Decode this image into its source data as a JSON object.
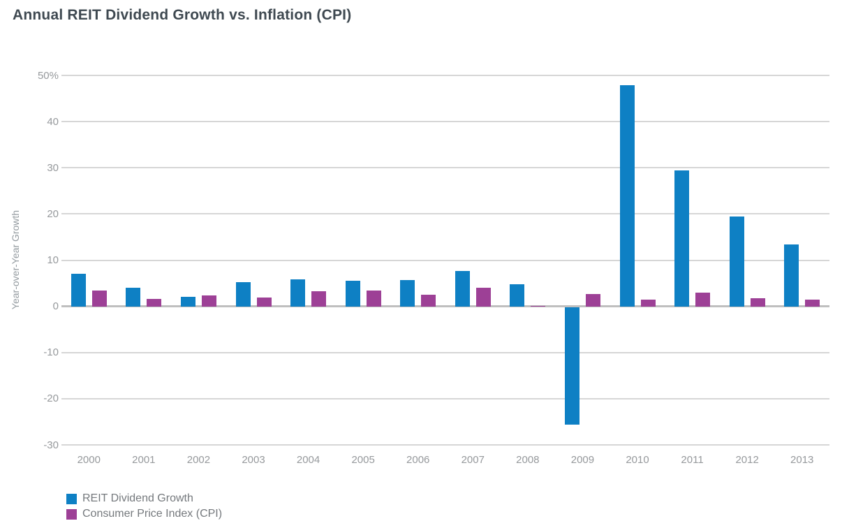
{
  "chart_data": {
    "type": "bar",
    "title": "Annual REIT Dividend Growth vs. Inflation (CPI)",
    "xlabel": "",
    "ylabel": "Year-over-Year Growth",
    "ylim": [
      -30,
      50
    ],
    "grid": "horizontal",
    "legend_position": "bottom-left",
    "background_color": "#ffffff",
    "y_ticks": [
      {
        "value": 50,
        "label": "50%"
      },
      {
        "value": 40,
        "label": "40"
      },
      {
        "value": 30,
        "label": "30"
      },
      {
        "value": 20,
        "label": "20"
      },
      {
        "value": 10,
        "label": "10"
      },
      {
        "value": 0,
        "label": "0"
      },
      {
        "value": -10,
        "label": "-10"
      },
      {
        "value": -20,
        "label": "-20"
      },
      {
        "value": -30,
        "label": "-30"
      }
    ],
    "categories": [
      "2000",
      "2001",
      "2002",
      "2003",
      "2004",
      "2005",
      "2006",
      "2007",
      "2008",
      "2009",
      "2010",
      "2011",
      "2012",
      "2013"
    ],
    "series": [
      {
        "name": "REIT Dividend Growth",
        "color": "#0e80c4",
        "values": [
          7.0,
          4.0,
          2.1,
          5.3,
          5.9,
          5.6,
          5.7,
          7.6,
          4.8,
          -25.4,
          47.9,
          29.4,
          19.4,
          13.4
        ]
      },
      {
        "name": "Consumer Price Index (CPI)",
        "color": "#9d4096",
        "values": [
          3.4,
          1.6,
          2.4,
          1.9,
          3.3,
          3.4,
          2.5,
          4.1,
          0.1,
          2.7,
          1.5,
          3.0,
          1.7,
          1.5
        ]
      }
    ]
  }
}
